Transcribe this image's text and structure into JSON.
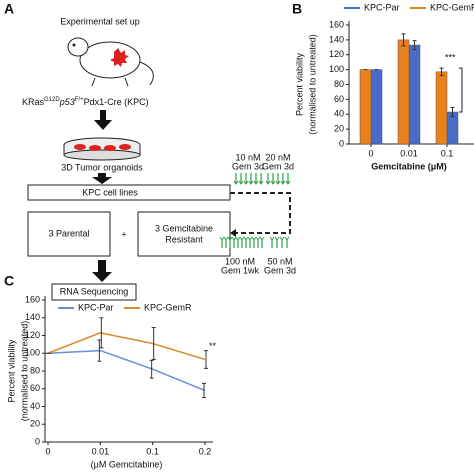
{
  "panel_labels": [
    "A",
    "B",
    "C"
  ],
  "diagram": {
    "setup": "Experimental set up",
    "genotype": [
      "KRas",
      "G12D",
      "p53",
      "F/+",
      "Pdx1-Cre (KPC)"
    ],
    "organoids": "3D Tumor organoids",
    "cell_lines": "KPC cell lines",
    "parental": "3 Parental",
    "plus": "+",
    "resistant": [
      "3 Gemcitabine",
      "Resistant"
    ],
    "sequencing": "RNA Sequencing",
    "doses": [
      [
        "10 nM",
        "Gem 3d"
      ],
      [
        "20 nM",
        "Gem 3d"
      ],
      [
        "100 nM",
        "Gem 1wk"
      ],
      [
        "50 nM",
        "Gem 3d"
      ]
    ]
  },
  "chart_data": [
    {
      "type": "bar",
      "ylabel": [
        "Percent viability",
        "(normalised to untreated)"
      ],
      "xlabel": "Gemcitabine (μM)",
      "categories": [
        "0",
        "0.01",
        "0.1"
      ],
      "series": [
        {
          "name": "KPC-Par",
          "color": "#4a6cc9",
          "values": [
            100,
            133,
            43
          ],
          "errors": [
            0,
            6,
            6
          ]
        },
        {
          "name": "KPC-GemR",
          "color": "#e8821e",
          "values": [
            100,
            140,
            97
          ],
          "errors": [
            0,
            8,
            5
          ]
        }
      ],
      "ylim": [
        0,
        160
      ],
      "yticks": [
        0,
        20,
        40,
        60,
        80,
        100,
        120,
        140,
        160
      ],
      "annotations": [
        "***"
      ],
      "legend": "top"
    },
    {
      "type": "line",
      "ylabel": [
        "Percent viability",
        "(normalised to untreated)"
      ],
      "xlabel": "(μM Gemcitabine)",
      "categories": [
        "0",
        "0.01",
        "0.1",
        "0.2"
      ],
      "series": [
        {
          "name": "KPC-Par",
          "color": "#6a8fd4",
          "values": [
            100,
            103,
            82,
            58
          ],
          "errors": [
            0,
            12,
            10,
            8
          ]
        },
        {
          "name": "KPC-GemR",
          "color": "#d98a2a",
          "values": [
            100,
            123,
            111,
            93
          ],
          "errors": [
            0,
            17,
            18,
            10
          ]
        }
      ],
      "ylim": [
        0,
        160
      ],
      "yticks": [
        0,
        20,
        40,
        60,
        80,
        100,
        120,
        140,
        160
      ],
      "annotations": [
        "**"
      ],
      "legend": "upper left"
    }
  ]
}
